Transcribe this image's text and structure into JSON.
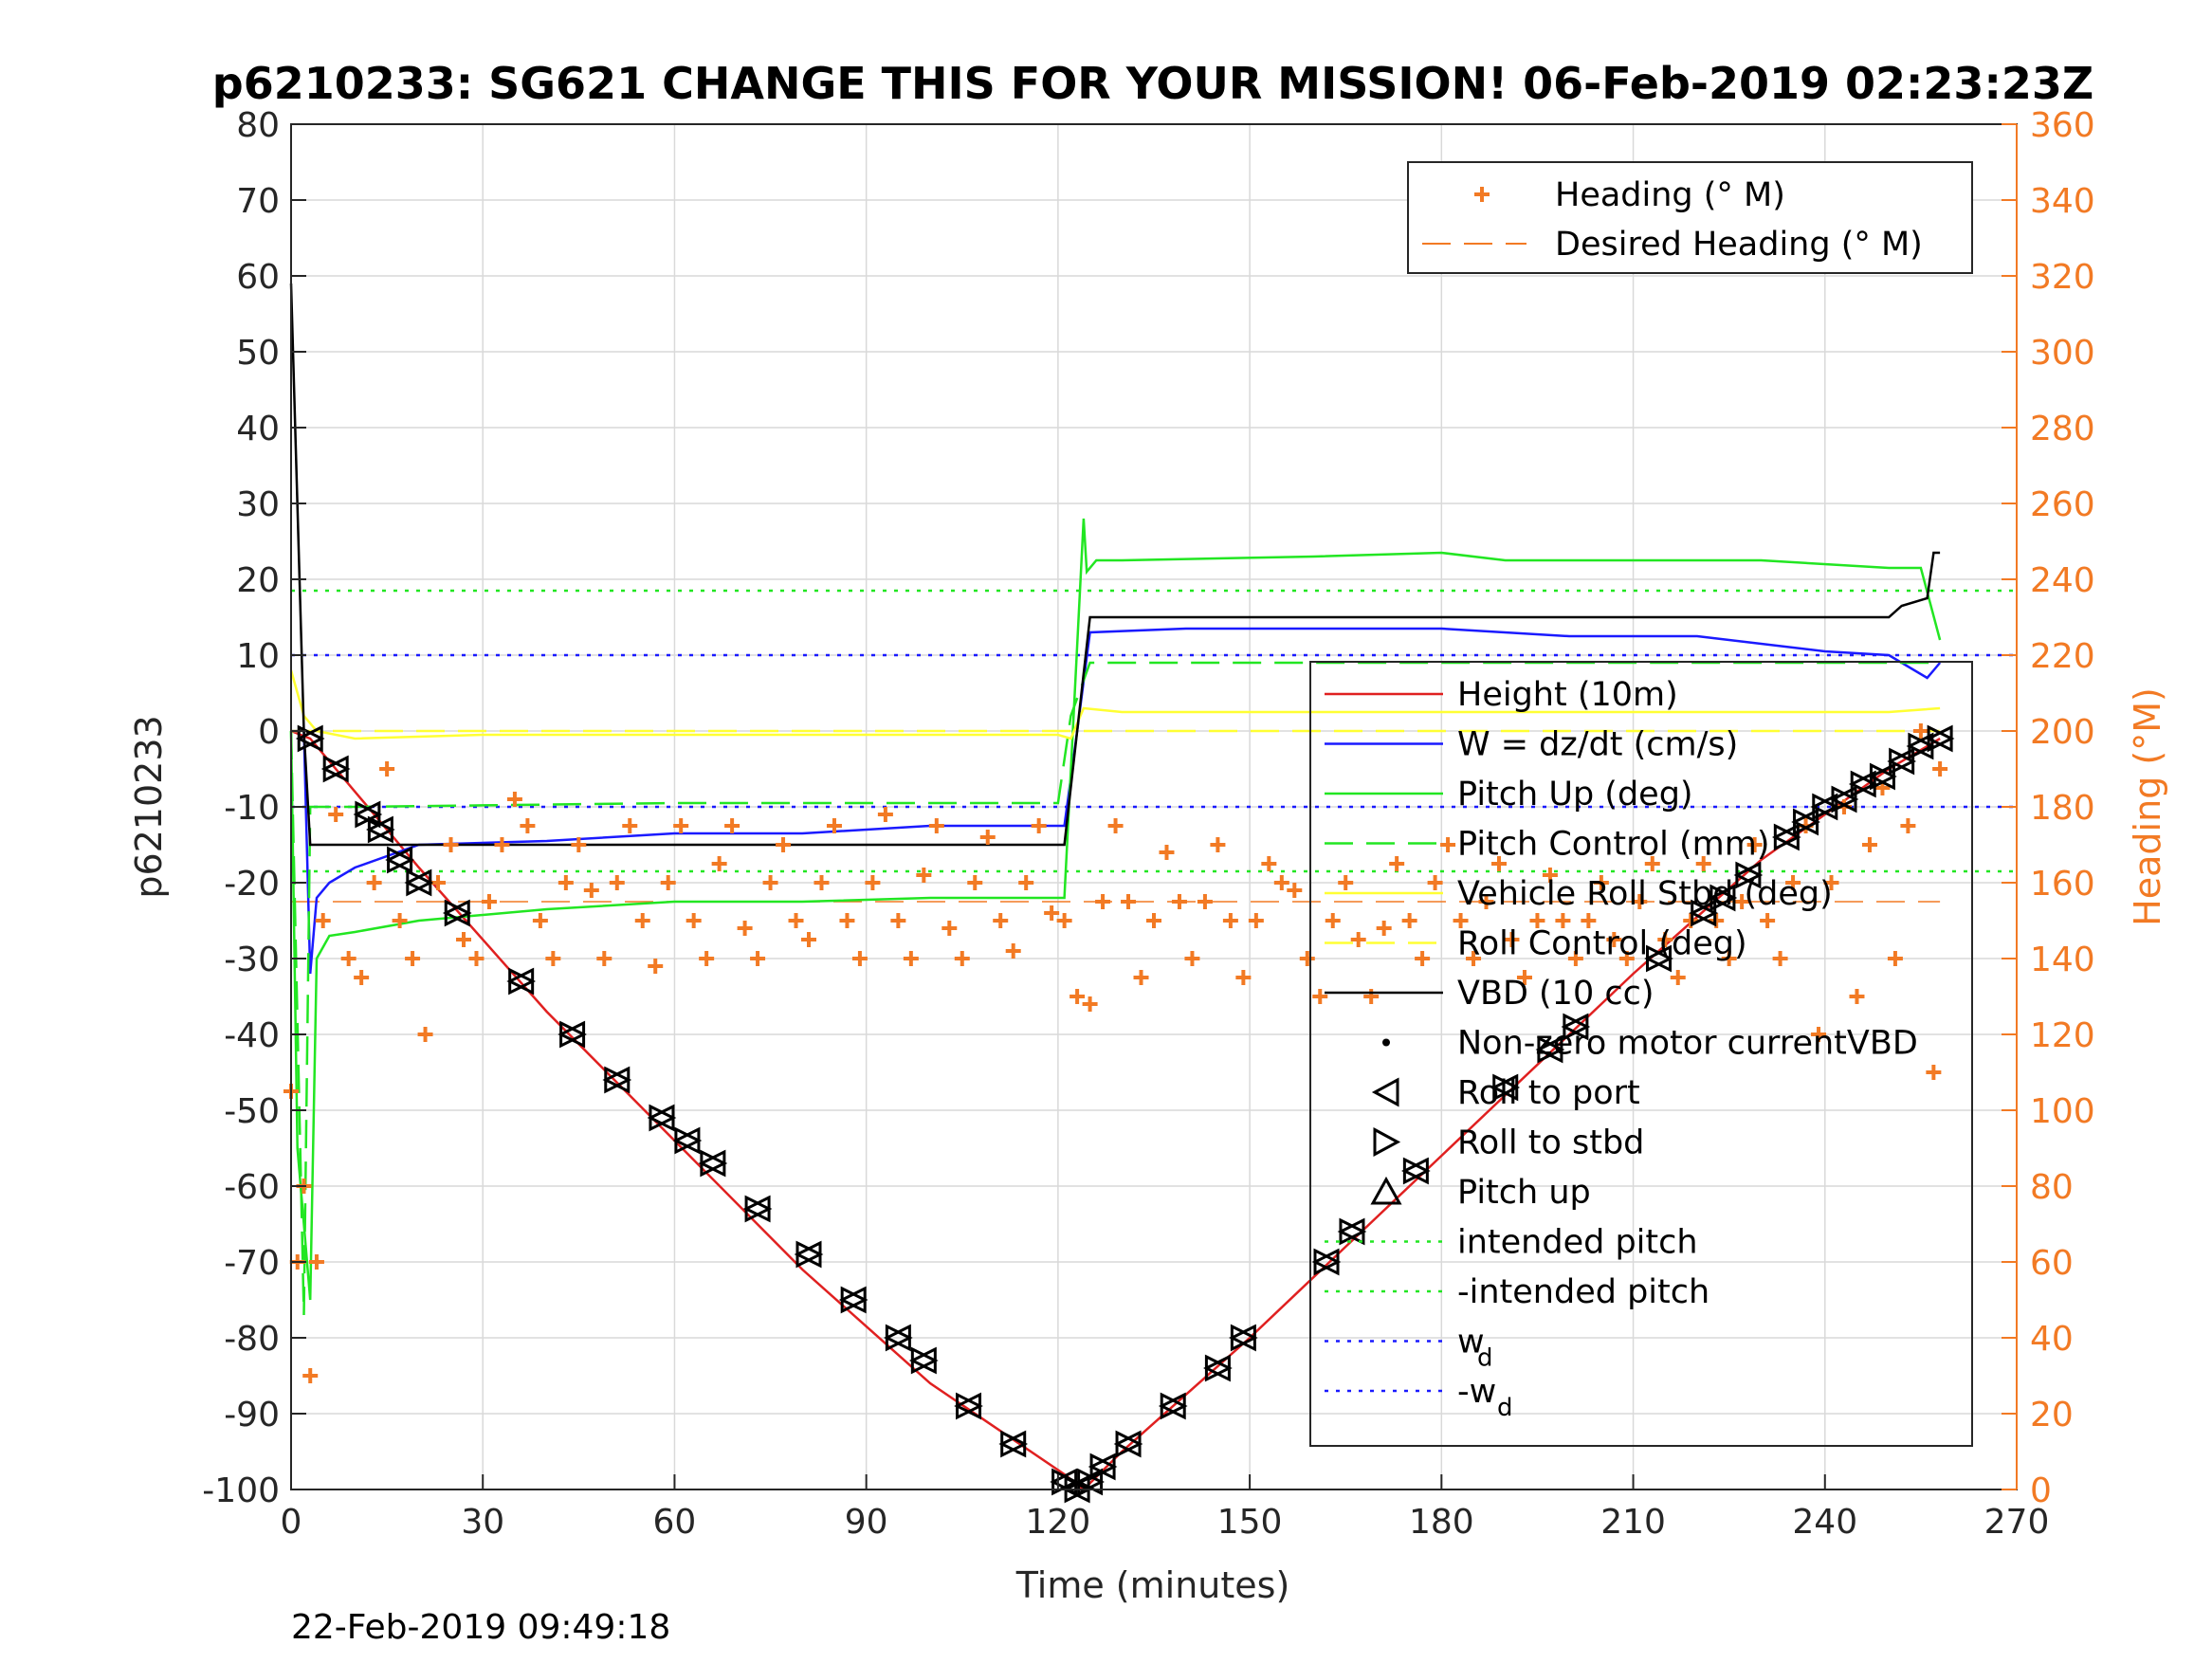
{
  "chart_data": {
    "type": "line",
    "title": "p6210233: SG621 CHANGE THIS FOR YOUR MISSION! 06-Feb-2019 02:23:23Z",
    "xlabel": "Time (minutes)",
    "ylabel": "p6210233",
    "ylabel_right": "Heading (°M)",
    "footer_timestamp": "22-Feb-2019 09:49:18",
    "xlim": [
      0,
      270
    ],
    "ylim": [
      -100,
      80
    ],
    "ylim_right": [
      0,
      360
    ],
    "x_ticks": [
      "0",
      "30",
      "60",
      "90",
      "120",
      "150",
      "180",
      "210",
      "240",
      "270"
    ],
    "y_ticks": [
      "-100",
      "-90",
      "-80",
      "-70",
      "-60",
      "-50",
      "-40",
      "-30",
      "-20",
      "-10",
      "0",
      "10",
      "20",
      "30",
      "40",
      "50",
      "60",
      "70",
      "80"
    ],
    "y_ticks_right": [
      "0",
      "20",
      "40",
      "60",
      "80",
      "100",
      "120",
      "140",
      "160",
      "180",
      "200",
      "220",
      "240",
      "260",
      "280",
      "300",
      "320",
      "340",
      "360"
    ],
    "grid": true,
    "legend_top": {
      "placement": "top-right",
      "entries": [
        {
          "name": "Heading (° M)",
          "color": "#f27a24",
          "marker": "plus"
        },
        {
          "name": "Desired Heading (° M)",
          "color": "#f27a24",
          "style": "dashed"
        }
      ]
    },
    "legend_main": {
      "placement": "right",
      "entries": [
        {
          "name": "Height (10m)",
          "color": "#e02020",
          "style": "solid"
        },
        {
          "name": "W = dz/dt (cm/s)",
          "color": "#1a1aff",
          "style": "solid"
        },
        {
          "name": "Pitch Up (deg)",
          "color": "#22e622",
          "style": "solid"
        },
        {
          "name": "Pitch Control (mm)",
          "color": "#22e622",
          "style": "dashed"
        },
        {
          "name": "Vehicle Roll Stbd (deg)",
          "color": "#ffff33",
          "style": "solid"
        },
        {
          "name": "Roll Control (deg)",
          "color": "#ffff33",
          "style": "dashed"
        },
        {
          "name": "VBD (10 cc)",
          "color": "#000000",
          "style": "solid"
        },
        {
          "name": "Non-zero motor currentVBD",
          "color": "#000000",
          "marker": "dot"
        },
        {
          "name": "Roll to port",
          "color": "#000000",
          "marker": "triangle-left"
        },
        {
          "name": "Roll to stbd",
          "color": "#000000",
          "marker": "triangle-right"
        },
        {
          "name": "Pitch up",
          "color": "#000000",
          "marker": "triangle-up"
        },
        {
          "name": "intended pitch",
          "color": "#22e622",
          "style": "dotted"
        },
        {
          "name": "-intended pitch",
          "color": "#22e622",
          "style": "dotted"
        },
        {
          "name": "w",
          "subscript": "d",
          "color": "#1a1aff",
          "style": "dotted"
        },
        {
          "name": "-w",
          "subscript": "d",
          "color": "#1a1aff",
          "style": "dotted"
        }
      ]
    },
    "reference_lines": {
      "intended_pitch": 18.5,
      "neg_intended_pitch": -18.5,
      "w_d": 10,
      "neg_w_d": -10,
      "desired_heading_deg": 155
    },
    "series": [
      {
        "name": "Height (10m)",
        "color": "#e02020",
        "x": [
          0,
          3,
          20,
          40,
          60,
          80,
          100,
          121,
          124,
          130,
          150,
          170,
          190,
          210,
          230,
          250,
          258
        ],
        "y": [
          0,
          -1,
          -18,
          -37,
          -54,
          -71,
          -86,
          -98,
          -100,
          -95,
          -80,
          -64,
          -48,
          -32,
          -17,
          -5,
          -1
        ]
      },
      {
        "name": "W = dz/dt (cm/s)",
        "color": "#1a1aff",
        "x": [
          0,
          2,
          3,
          4,
          6,
          10,
          20,
          40,
          60,
          80,
          100,
          121,
          123,
          125,
          140,
          160,
          180,
          200,
          220,
          240,
          250,
          256,
          257,
          258
        ],
        "y": [
          0,
          0,
          -32,
          -22,
          -20,
          -18,
          -15,
          -14.5,
          -13.5,
          -13.5,
          -12.5,
          -12.5,
          0,
          13,
          13.5,
          13.5,
          13.5,
          12.5,
          12.5,
          10.5,
          10,
          7,
          8,
          9
        ]
      },
      {
        "name": "Pitch Up (deg)",
        "color": "#22e622",
        "x": [
          0,
          1,
          2,
          3,
          4,
          6,
          10,
          20,
          40,
          60,
          80,
          100,
          120,
          121,
          124,
          124.5,
          126,
          130,
          160,
          180,
          190,
          210,
          230,
          250,
          255,
          258
        ],
        "y": [
          0,
          -55,
          -65,
          -75,
          -30,
          -27,
          -26.5,
          -25,
          -23.5,
          -22.5,
          -22.5,
          -22,
          -22,
          -22,
          28,
          21,
          22.5,
          22.5,
          23,
          23.5,
          22.5,
          22.5,
          22.5,
          21.5,
          21.5,
          12
        ]
      },
      {
        "name": "Pitch Control (mm)",
        "color": "#22e622",
        "style": "dashed",
        "x": [
          0,
          2,
          3,
          10,
          60,
          120,
          122,
          125,
          130,
          200,
          258
        ],
        "y": [
          0,
          -77,
          -10,
          -10,
          -9.5,
          -9.5,
          2,
          9,
          9,
          9,
          9
        ]
      },
      {
        "name": "Vehicle Roll Stbd (deg)",
        "color": "#ffff33",
        "x": [
          0,
          2,
          4,
          10,
          30,
          60,
          90,
          120,
          122,
          124,
          130,
          160,
          190,
          220,
          250,
          258
        ],
        "y": [
          8,
          2,
          0,
          -1,
          -0.5,
          -0.5,
          -0.5,
          -0.5,
          -1,
          3,
          2.5,
          2.5,
          2.5,
          2.5,
          2.5,
          3
        ]
      },
      {
        "name": "Roll Control (deg)",
        "color": "#ffff33",
        "style": "dashed",
        "x": [
          0,
          258
        ],
        "y": [
          0,
          0
        ]
      },
      {
        "name": "VBD (10 cc)",
        "color": "#000000",
        "x": [
          0,
          2,
          3,
          120,
          121,
          125,
          140,
          200,
          250,
          252,
          256,
          257,
          258
        ],
        "y": [
          59,
          0,
          -15,
          -15,
          -15,
          15,
          15,
          15,
          15,
          16.5,
          17.5,
          23.5,
          23.5
        ]
      },
      {
        "name": "Heading (° M)",
        "color": "#f27a24",
        "marker": "plus",
        "axis": "right",
        "x": [
          0,
          1,
          2,
          3,
          4,
          5,
          7,
          9,
          11,
          13,
          15,
          17,
          19,
          21,
          23,
          25,
          27,
          29,
          31,
          33,
          35,
          37,
          39,
          41,
          43,
          45,
          47,
          49,
          51,
          53,
          55,
          57,
          59,
          61,
          63,
          65,
          67,
          69,
          71,
          73,
          75,
          77,
          79,
          81,
          83,
          85,
          87,
          89,
          91,
          93,
          95,
          97,
          99,
          101,
          103,
          105,
          107,
          109,
          111,
          113,
          115,
          117,
          119,
          121,
          123,
          125,
          127,
          129,
          131,
          133,
          135,
          137,
          139,
          141,
          143,
          145,
          147,
          149,
          151,
          153,
          155,
          157,
          159,
          161,
          163,
          165,
          167,
          169,
          171,
          173,
          175,
          177,
          179,
          181,
          183,
          185,
          187,
          189,
          191,
          193,
          195,
          197,
          199,
          201,
          203,
          205,
          207,
          209,
          211,
          213,
          215,
          217,
          219,
          221,
          223,
          225,
          227,
          229,
          231,
          233,
          235,
          237,
          239,
          241,
          243,
          245,
          247,
          249,
          251,
          253,
          255,
          257,
          258
        ],
        "y": [
          105,
          60,
          80,
          30,
          60,
          150,
          178,
          140,
          135,
          160,
          190,
          150,
          140,
          120,
          160,
          170,
          145,
          140,
          155,
          170,
          182,
          175,
          150,
          140,
          160,
          170,
          158,
          140,
          160,
          175,
          150,
          138,
          160,
          175,
          150,
          140,
          165,
          175,
          148,
          140,
          160,
          170,
          150,
          145,
          160,
          175,
          150,
          140,
          160,
          178,
          150,
          140,
          162,
          175,
          148,
          140,
          160,
          172,
          150,
          142,
          160,
          175,
          152,
          150,
          130,
          128,
          155,
          175,
          155,
          135,
          150,
          168,
          155,
          140,
          155,
          170,
          150,
          135,
          150,
          165,
          160,
          158,
          140,
          130,
          150,
          160,
          145,
          130,
          148,
          165,
          150,
          140,
          160,
          170,
          150,
          140,
          155,
          165,
          145,
          135,
          150,
          162,
          150,
          140,
          150,
          160,
          145,
          140,
          155,
          165,
          145,
          135,
          150,
          165,
          150,
          140,
          155,
          170,
          150,
          140,
          160,
          175,
          120,
          160,
          180,
          130,
          170,
          185,
          140,
          175,
          200,
          110,
          190
        ]
      }
    ],
    "markers": {
      "roll_to_port": {
        "x": [
          3,
          7,
          12,
          14,
          17,
          20,
          26,
          36,
          44,
          51,
          58,
          62,
          66,
          73,
          81,
          88,
          95,
          99,
          106,
          113,
          121,
          123,
          125,
          127,
          131,
          138,
          145,
          149,
          162,
          166,
          176,
          190,
          197,
          201,
          214,
          221,
          224,
          228,
          234,
          237,
          240,
          243,
          246,
          249,
          252,
          255,
          258
        ],
        "y": [
          -1,
          -5,
          -11,
          -13,
          -17,
          -20,
          -24,
          -33,
          -40,
          -46,
          -51,
          -54,
          -57,
          -63,
          -69,
          -75,
          -80,
          -83,
          -89,
          -94,
          -99,
          -100,
          -99,
          -97,
          -94,
          -89,
          -84,
          -80,
          -70,
          -66,
          -58,
          -47,
          -42,
          -39,
          -30,
          -24,
          -22,
          -19,
          -14,
          -12,
          -10,
          -9,
          -7,
          -6,
          -4,
          -2,
          -1
        ]
      }
    }
  }
}
